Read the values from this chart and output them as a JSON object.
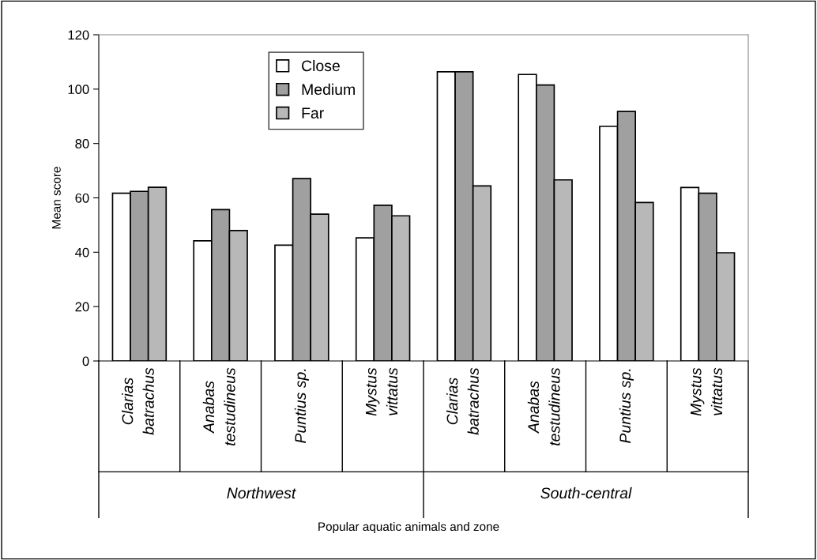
{
  "chart_data": {
    "type": "bar",
    "ylabel": "Mean score",
    "categories": [
      "Clarias\nbatrachus",
      "Anabas\ntestudineus",
      "Puntius sp.",
      "Mystus\nvittatus",
      "Clarias\nbatrachus",
      "Anabas\ntestudineus",
      "Puntius sp.",
      "Mystus\nvittatus"
    ],
    "series": [
      {
        "name": "Close",
        "color": "#ffffff",
        "values": [
          61.7,
          44.2,
          42.6,
          45.3,
          106.4,
          105.4,
          86.3,
          63.8
        ]
      },
      {
        "name": "Medium",
        "color": "#a0a0a0",
        "values": [
          62.4,
          55.7,
          67.1,
          57.3,
          106.4,
          101.5,
          91.8,
          61.7
        ]
      },
      {
        "name": "Far",
        "color": "#b8b8b8",
        "values": [
          63.9,
          48.0,
          54.0,
          53.4,
          64.4,
          66.6,
          58.3,
          39.8
        ]
      }
    ],
    "annotations": [
      "Northwest",
      "South-central",
      "Popular aquatic animals and zone"
    ],
    "ylim": [
      0,
      120
    ],
    "yticks": [
      0,
      20,
      40,
      60,
      80,
      100,
      120
    ],
    "grid": false,
    "legend": "top left"
  }
}
